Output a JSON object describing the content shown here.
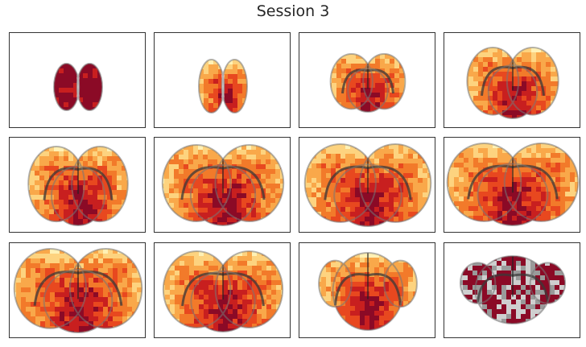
{
  "figure": {
    "title": "Session 3",
    "colormap": [
      "#8b0a26",
      "#c81f1f",
      "#e8481f",
      "#f27a2a",
      "#f9a84a",
      "#fdd37f",
      "#fff1b5"
    ],
    "outline_gray": "#777777",
    "panels": [
      {
        "id": "slice-1",
        "shape": "olfactory-bulb-small"
      },
      {
        "id": "slice-2",
        "shape": "olfactory-bulb"
      },
      {
        "id": "slice-3",
        "shape": "frontal-cortex"
      },
      {
        "id": "slice-4",
        "shape": "frontal-striatum"
      },
      {
        "id": "slice-5",
        "shape": "striatum"
      },
      {
        "id": "slice-6",
        "shape": "septum-striatum"
      },
      {
        "id": "slice-7",
        "shape": "thalamus"
      },
      {
        "id": "slice-8",
        "shape": "hippocampus"
      },
      {
        "id": "slice-9",
        "shape": "midbrain"
      },
      {
        "id": "slice-10",
        "shape": "midbrain-posterior"
      },
      {
        "id": "slice-11",
        "shape": "cerebellum"
      },
      {
        "id": "slice-12",
        "shape": "cerebellum-posterior"
      }
    ]
  }
}
